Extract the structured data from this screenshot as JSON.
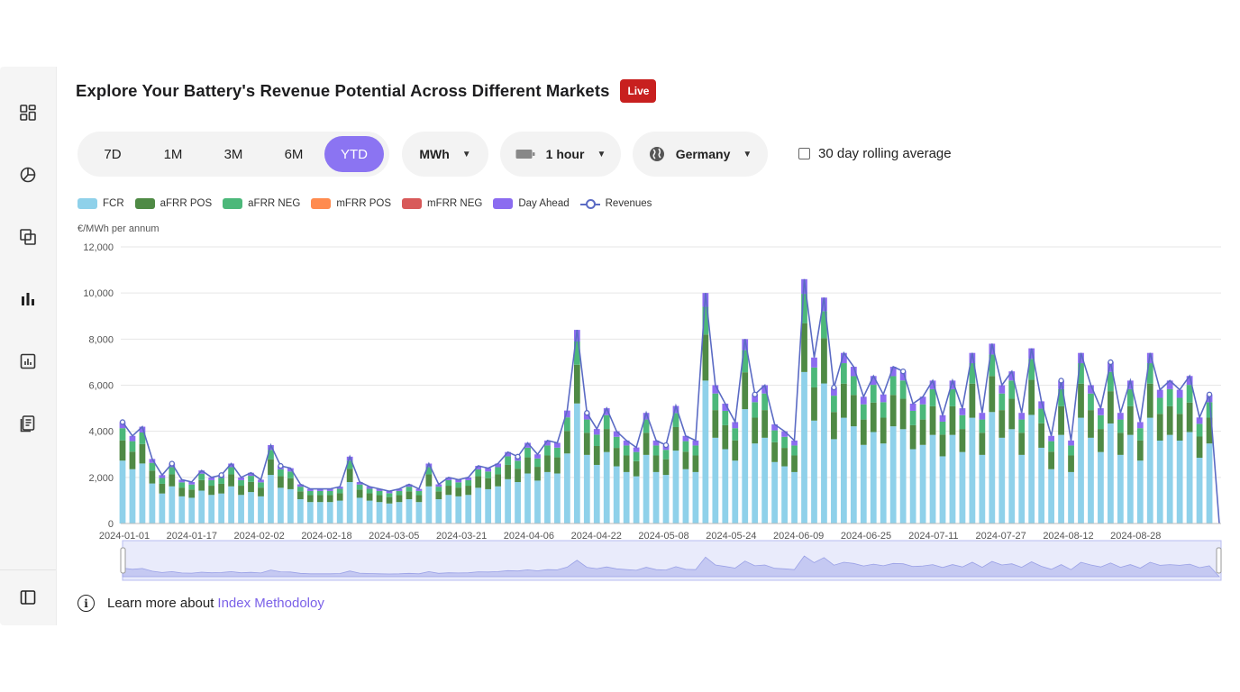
{
  "header": {
    "title": "Explore Your Battery's Revenue Potential Across Different Markets",
    "badge": "Live"
  },
  "sidebar": {
    "items": [
      {
        "icon": "dashboard-icon"
      },
      {
        "icon": "pie-chart-icon"
      },
      {
        "icon": "layers-icon"
      },
      {
        "icon": "bar-chart-icon",
        "active": true
      },
      {
        "icon": "report-icon"
      },
      {
        "icon": "documents-icon"
      }
    ],
    "collapse_icon": "sidebar-toggle-icon"
  },
  "controls": {
    "ranges": [
      "7D",
      "1M",
      "3M",
      "6M",
      "YTD"
    ],
    "active_range": "YTD",
    "unit": "MWh",
    "duration": "1 hour",
    "country": "Germany",
    "rolling_label": "30 day rolling average",
    "rolling_checked": false
  },
  "legend": [
    {
      "label": "FCR",
      "color": "#8fd1ea"
    },
    {
      "label": "aFRR POS",
      "color": "#4f8a45"
    },
    {
      "label": "aFRR NEG",
      "color": "#4cb87a"
    },
    {
      "label": "mFRR POS",
      "color": "#ff8b4f"
    },
    {
      "label": "mFRR NEG",
      "color": "#d85a5a"
    },
    {
      "label": "Day Ahead",
      "color": "#8b6cf0"
    },
    {
      "label": "Revenues",
      "color": "#5b6bc4"
    }
  ],
  "chart_data": {
    "type": "bar",
    "stacked": true,
    "ylabel": "€/MWh per annum",
    "ylim": [
      0,
      12000
    ],
    "yticks": [
      "0",
      "2,000",
      "4,000",
      "6,000",
      "8,000",
      "10,000",
      "12,000"
    ],
    "x_tick_labels": [
      "2024-01-01",
      "2024-01-17",
      "2024-02-02",
      "2024-02-18",
      "2024-03-05",
      "2024-03-21",
      "2024-04-06",
      "2024-04-22",
      "2024-05-08",
      "2024-05-24",
      "2024-06-09",
      "2024-06-25",
      "2024-07-11",
      "2024-07-27",
      "2024-08-12",
      "2024-08-28"
    ],
    "x_start": "2024-01-01",
    "x_end": "2024-09-07",
    "revenue_line": [
      4400,
      3800,
      4200,
      2800,
      2100,
      2600,
      1900,
      1800,
      2300,
      2000,
      2100,
      2600,
      2000,
      2200,
      1900,
      3400,
      2500,
      2400,
      1700,
      1500,
      1500,
      1500,
      1600,
      2900,
      1800,
      1600,
      1500,
      1400,
      1500,
      1700,
      1500,
      2600,
      1700,
      2000,
      1900,
      2000,
      2500,
      2400,
      2600,
      3100,
      2900,
      3500,
      3000,
      3600,
      3500,
      4900,
      8400,
      4800,
      4100,
      5000,
      4000,
      3600,
      3300,
      4800,
      3600,
      3400,
      5100,
      3800,
      3600,
      10000,
      6000,
      5200,
      4400,
      8000,
      5600,
      6000,
      4300,
      4000,
      3600,
      10600,
      7200,
      9800,
      5900,
      7400,
      6800,
      5500,
      6400,
      5600,
      6800,
      6600,
      5200,
      5500,
      6200,
      4700,
      6200,
      5000,
      7400,
      4800,
      7800,
      6000,
      6600,
      4800,
      7600,
      5300,
      3800,
      6200,
      3600,
      7400,
      6000,
      5000,
      7000,
      4800,
      6200,
      4400,
      7400,
      5800,
      6200,
      5800,
      6400,
      4600,
      5600,
      0
    ]
  },
  "footer": {
    "text": "Learn more about",
    "link": "Index Methodoloy"
  }
}
